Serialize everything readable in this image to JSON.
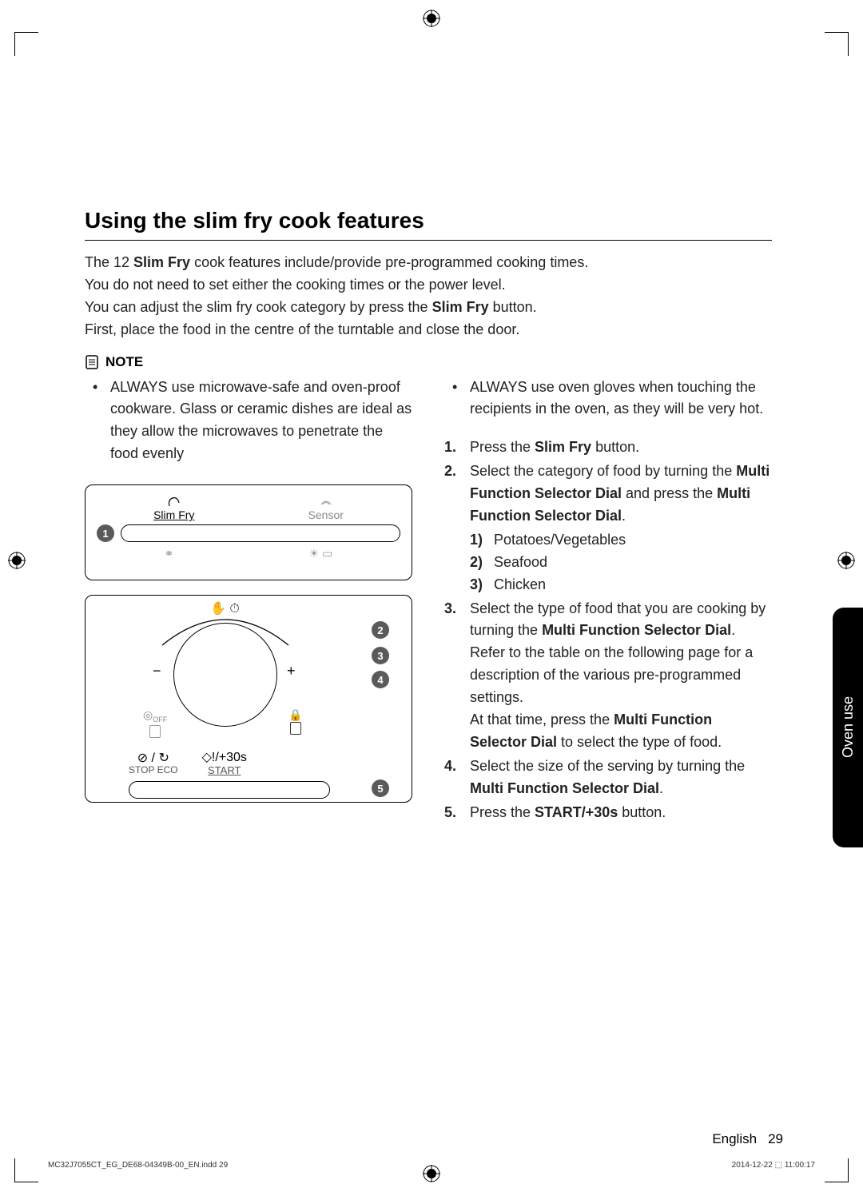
{
  "title": "Using the slim fry cook features",
  "intro": [
    "The 12 <b>Slim Fry</b> cook features include/provide pre-programmed cooking times.",
    "You do not need to set either the cooking times or the power level.",
    "You can adjust the slim fry cook category by press the <b>Slim Fry</b> button.",
    "First, place the food in the centre of the turntable and close the door."
  ],
  "noteLabel": "NOTE",
  "notes": [
    "ALWAYS use microwave-safe and oven-proof cookware. Glass or ceramic dishes are ideal as they allow the microwaves to penetrate the food evenly",
    "ALWAYS use oven gloves when touching the recipients in the oven, as they will be very hot."
  ],
  "steps": [
    {
      "n": "1.",
      "html": "Press the <b>Slim Fry</b> button."
    },
    {
      "n": "2.",
      "html": "Select the category of food by turning the <b>Multi Function Selector Dial</b> and press the <b>Multi Function Selector Dial</b>.",
      "sub": [
        {
          "sn": "1)",
          "t": "Potatoes/Vegetables"
        },
        {
          "sn": "2)",
          "t": "Seafood"
        },
        {
          "sn": "3)",
          "t": "Chicken"
        }
      ]
    },
    {
      "n": "3.",
      "html": "Select the type of food that you are cooking by turning the <b>Multi Function Selector Dial</b>.<br>Refer to the table on the following page for a description of the various pre-programmed settings.<br>At that time, press the <b>Multi Function Selector Dial</b> to select the type of food."
    },
    {
      "n": "4.",
      "html": "Select the size of the serving by turning the <b>Multi Function Selector Dial</b>."
    },
    {
      "n": "5.",
      "html": "Press the <b>START/+30s</b> button."
    }
  ],
  "d1": {
    "slim": "Slim Fry",
    "sensor": "Sensor",
    "botL": "⚭",
    "botR": "☀ ▭"
  },
  "d2": {
    "top": "✋ ⏱",
    "off": "OFF",
    "stop": "STOP   ECO",
    "stopSym": "⊘ / ↻",
    "start": "START",
    "startSym": "◇!/+30s",
    "lock": "🔒"
  },
  "tab": "Oven use",
  "footer": {
    "lang": "English",
    "page": "29"
  },
  "footline": {
    "l": "MC32J7055CT_EG_DE68-04349B-00_EN.indd   29",
    "r": "2014-12-22   ⬚ 11:00:17"
  }
}
